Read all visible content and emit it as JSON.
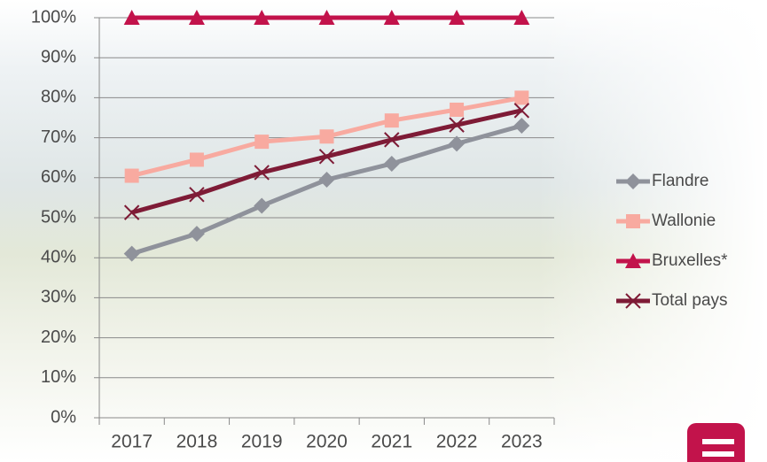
{
  "chart_data": {
    "type": "line",
    "categories": [
      "2017",
      "2018",
      "2019",
      "2020",
      "2021",
      "2022",
      "2023"
    ],
    "series": [
      {
        "name": "Flandre",
        "color": "#8f929b",
        "marker": "diamond",
        "values": [
          41,
          46,
          53,
          59.5,
          63.5,
          68.5,
          73
        ]
      },
      {
        "name": "Wallonie",
        "color": "#f8aaa0",
        "marker": "square",
        "values": [
          60.5,
          64.5,
          69,
          70.3,
          74.3,
          77,
          80
        ]
      },
      {
        "name": "Bruxelles*",
        "color": "#c2134b",
        "marker": "triangle",
        "values": [
          100,
          100,
          100,
          100,
          100,
          100,
          100
        ]
      },
      {
        "name": "Total pays",
        "color": "#7e1b36",
        "marker": "x",
        "values": [
          51.3,
          55.8,
          61.3,
          65.3,
          69.5,
          73.2,
          76.8
        ]
      }
    ],
    "ylim": [
      0,
      100
    ],
    "yticks": [
      {
        "value": 0,
        "label": "0%"
      },
      {
        "value": 10,
        "label": "10%"
      },
      {
        "value": 20,
        "label": "20%"
      },
      {
        "value": 30,
        "label": "30%"
      },
      {
        "value": 40,
        "label": "40%"
      },
      {
        "value": 50,
        "label": "50%"
      },
      {
        "value": 60,
        "label": "60%"
      },
      {
        "value": 70,
        "label": "70%"
      },
      {
        "value": 80,
        "label": "80%"
      },
      {
        "value": 90,
        "label": "90%"
      },
      {
        "value": 100,
        "label": "100%"
      }
    ],
    "grid": true,
    "legend": "right"
  }
}
